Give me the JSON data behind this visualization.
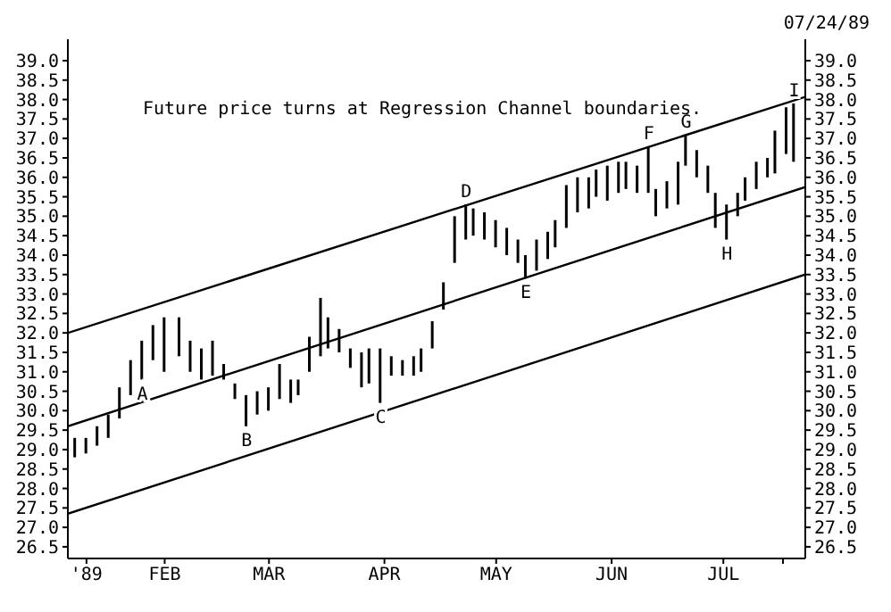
{
  "chart_data": {
    "type": "bar",
    "color": "#000000",
    "x": [
      "1989-01-08",
      "1989-01-11",
      "1989-01-14",
      "1989-01-17",
      "1989-01-20",
      "1989-01-23",
      "1989-01-26",
      "1989-01-29",
      "1989-02-01",
      "1989-02-05",
      "1989-02-08",
      "1989-02-11",
      "1989-02-14",
      "1989-02-17",
      "1989-02-20",
      "1989-02-23",
      "1989-02-26",
      "1989-03-01",
      "1989-03-04",
      "1989-03-07",
      "1989-03-09",
      "1989-03-12",
      "1989-03-15",
      "1989-03-17",
      "1989-03-20",
      "1989-03-23",
      "1989-03-26",
      "1989-03-28",
      "1989-03-31",
      "1989-04-03",
      "1989-04-06",
      "1989-04-09",
      "1989-04-11",
      "1989-04-14",
      "1989-04-17",
      "1989-04-20",
      "1989-04-23",
      "1989-04-25",
      "1989-04-28",
      "1989-05-01",
      "1989-05-04",
      "1989-05-07",
      "1989-05-09",
      "1989-05-12",
      "1989-05-15",
      "1989-05-17",
      "1989-05-20",
      "1989-05-23",
      "1989-05-26",
      "1989-05-28",
      "1989-05-31",
      "1989-06-03",
      "1989-06-05",
      "1989-06-08",
      "1989-06-11",
      "1989-06-13",
      "1989-06-16",
      "1989-06-19",
      "1989-06-21",
      "1989-06-24",
      "1989-06-27",
      "1989-06-29",
      "1989-07-02",
      "1989-07-05",
      "1989-07-07",
      "1989-07-10",
      "1989-07-13",
      "1989-07-15",
      "1989-07-18",
      "1989-07-20"
    ],
    "base": [
      28.8,
      28.9,
      29.1,
      29.3,
      29.8,
      30.4,
      30.8,
      31.3,
      31.0,
      31.4,
      31.0,
      30.8,
      30.9,
      30.8,
      30.3,
      29.6,
      29.9,
      30.0,
      30.3,
      30.2,
      30.4,
      31.0,
      31.4,
      31.6,
      31.5,
      31.1,
      30.6,
      30.7,
      30.2,
      30.9,
      30.9,
      30.9,
      31.0,
      31.6,
      32.6,
      33.8,
      34.4,
      34.5,
      34.4,
      34.2,
      34.0,
      33.8,
      33.4,
      33.6,
      33.9,
      34.2,
      34.7,
      35.1,
      35.2,
      35.5,
      35.4,
      35.6,
      35.7,
      35.6,
      35.6,
      35.0,
      35.2,
      35.3,
      36.3,
      36.0,
      35.6,
      34.7,
      34.4,
      35.0,
      35.4,
      35.7,
      36.0,
      36.1,
      36.6,
      36.4
    ],
    "values": [
      0.5,
      0.4,
      0.5,
      0.6,
      0.8,
      0.9,
      1.0,
      0.9,
      1.4,
      1.0,
      0.8,
      0.8,
      0.9,
      0.4,
      0.4,
      0.8,
      0.6,
      0.6,
      0.9,
      0.6,
      0.4,
      0.9,
      1.5,
      0.8,
      0.6,
      0.5,
      0.9,
      0.9,
      1.4,
      0.5,
      0.4,
      0.5,
      0.6,
      0.7,
      0.7,
      1.2,
      0.9,
      0.7,
      0.7,
      0.7,
      0.7,
      0.6,
      0.6,
      0.8,
      0.7,
      0.7,
      1.1,
      0.9,
      0.8,
      0.7,
      0.9,
      0.8,
      0.7,
      0.7,
      1.2,
      0.7,
      0.7,
      1.1,
      0.8,
      0.7,
      0.7,
      0.9,
      0.9,
      0.6,
      0.6,
      0.7,
      0.5,
      1.1,
      1.2,
      1.5
    ],
    "series": [
      {
        "type": "line",
        "color": "#000000",
        "x": [
          "1989-01-06",
          "1989-07-23"
        ],
        "values": [
          32.0,
          38.07
        ]
      },
      {
        "type": "line",
        "color": "#000000",
        "x": [
          "1989-01-06",
          "1989-07-23"
        ],
        "values": [
          29.6,
          35.75
        ]
      },
      {
        "type": "line",
        "color": "#000000",
        "x": [
          "1989-01-06",
          "1989-07-23"
        ],
        "values": [
          27.35,
          33.5
        ]
      }
    ],
    "xlim": [
      "1989-01-06",
      "1989-07-23"
    ],
    "xticks": [
      {
        "value": "1989-01-11",
        "label": "'89"
      },
      {
        "value": "1989-02-01",
        "label": "FEB"
      },
      {
        "value": "1989-03-01",
        "label": "MAR"
      },
      {
        "value": "1989-04-01",
        "label": "APR"
      },
      {
        "value": "1989-05-01",
        "label": "MAY"
      },
      {
        "value": "1989-06-01",
        "label": "JUN"
      },
      {
        "value": "1989-07-01",
        "label": "JUL"
      },
      {
        "value": "1989-07-17",
        "label": null
      }
    ],
    "ylim": [
      26.2,
      39.55
    ],
    "yticks": [
      {
        "value": 26.5,
        "label": "26.5"
      },
      {
        "value": 27,
        "label": "27.0"
      },
      {
        "value": 27.5,
        "label": "27.5"
      },
      {
        "value": 28,
        "label": "28.0"
      },
      {
        "value": 28.5,
        "label": "28.5"
      },
      {
        "value": 29,
        "label": "29.0"
      },
      {
        "value": 29.5,
        "label": "29.5"
      },
      {
        "value": 30,
        "label": "30.0"
      },
      {
        "value": 30.5,
        "label": "30.5"
      },
      {
        "value": 31,
        "label": "31.0"
      },
      {
        "value": 31.5,
        "label": "31.5"
      },
      {
        "value": 32,
        "label": "32.0"
      },
      {
        "value": 32.5,
        "label": "32.5"
      },
      {
        "value": 33,
        "label": "33.0"
      },
      {
        "value": 33.5,
        "label": "33.5"
      },
      {
        "value": 34,
        "label": "34.0"
      },
      {
        "value": 34.5,
        "label": "34.5"
      },
      {
        "value": 35,
        "label": "35.0"
      },
      {
        "value": 35.5,
        "label": "35.5"
      },
      {
        "value": 36,
        "label": "36.0"
      },
      {
        "value": 36.5,
        "label": "36.5"
      },
      {
        "value": 37,
        "label": "37.0"
      },
      {
        "value": 37.5,
        "label": "37.5"
      },
      {
        "value": 38,
        "label": "38.0"
      },
      {
        "value": 38.5,
        "label": "38.5"
      },
      {
        "value": 39,
        "label": "39.0"
      }
    ],
    "y2lim": [
      26.2,
      39.55
    ],
    "y2ticks": [
      {
        "value": 26.5,
        "label": "26.5"
      },
      {
        "value": 27,
        "label": "27.0"
      },
      {
        "value": 27.5,
        "label": "27.5"
      },
      {
        "value": 28,
        "label": "28.0"
      },
      {
        "value": 28.5,
        "label": "28.5"
      },
      {
        "value": 29,
        "label": "29.0"
      },
      {
        "value": 29.5,
        "label": "29.5"
      },
      {
        "value": 30,
        "label": "30.0"
      },
      {
        "value": 30.5,
        "label": "30.5"
      },
      {
        "value": 31,
        "label": "31.0"
      },
      {
        "value": 31.5,
        "label": "31.5"
      },
      {
        "value": 32,
        "label": "32.0"
      },
      {
        "value": 32.5,
        "label": "32.5"
      },
      {
        "value": 33,
        "label": "33.0"
      },
      {
        "value": 33.5,
        "label": "33.5"
      },
      {
        "value": 34,
        "label": "34.0"
      },
      {
        "value": 34.5,
        "label": "34.5"
      },
      {
        "value": 35,
        "label": "35.0"
      },
      {
        "value": 35.5,
        "label": "35.5"
      },
      {
        "value": 36,
        "label": "36.0"
      },
      {
        "value": 36.5,
        "label": "36.5"
      },
      {
        "value": 37,
        "label": "37.0"
      },
      {
        "value": 37.5,
        "label": "37.5"
      },
      {
        "value": 38,
        "label": "38.0"
      },
      {
        "value": 38.5,
        "label": "38.5"
      },
      {
        "value": 39,
        "label": "39.0"
      }
    ],
    "grid": false,
    "annotations": [
      "Future price turns at Regression Channel boundaries.",
      "07/24/89",
      {
        "text": "A",
        "x": "1989-01-26",
        "y": 30.8
      },
      {
        "text": "B",
        "x": "1989-02-23",
        "y": 29.6
      },
      {
        "text": "C",
        "x": "1989-03-31",
        "y": 30.2
      },
      {
        "text": "D",
        "x": "1989-04-23",
        "y": 35.3
      },
      {
        "text": "E",
        "x": "1989-05-09",
        "y": 33.4
      },
      {
        "text": "F",
        "x": "1989-06-11",
        "y": 36.8
      },
      {
        "text": "G",
        "x": "1989-06-21",
        "y": 37.1
      },
      {
        "text": "H",
        "x": "1989-07-02",
        "y": 34.4
      },
      {
        "text": "I",
        "x": "1989-07-20",
        "y": 37.9
      }
    ]
  }
}
